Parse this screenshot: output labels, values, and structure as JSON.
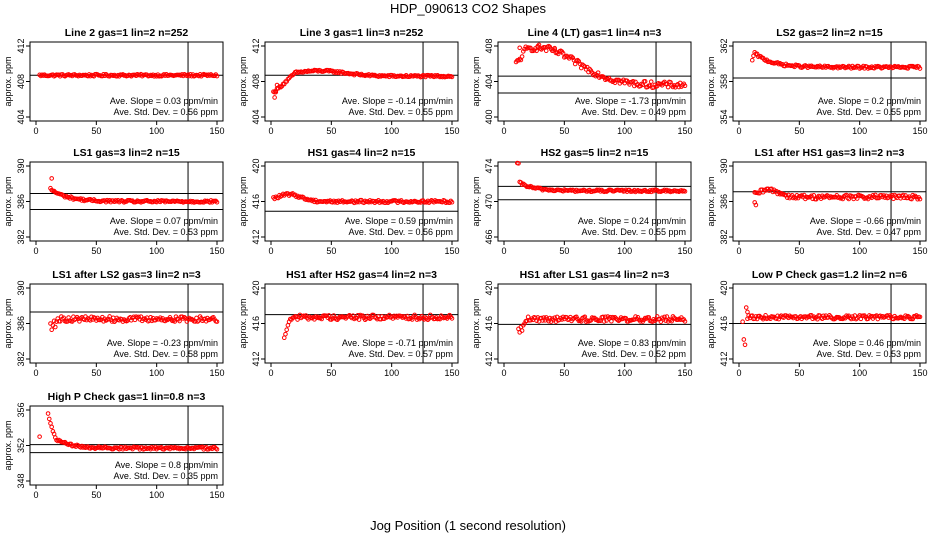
{
  "page": {
    "title": "HDP_090613  CO2 Shapes",
    "xlabel": "Jog Position (1 second resolution)"
  },
  "colors": {
    "points": "#ff0000",
    "axis": "#000000"
  },
  "annotation_labels": {
    "slope_prefix": "Ave. Slope =",
    "slope_unit": "ppm/min",
    "sd_prefix": "Ave. Std. Dev. =",
    "sd_unit": "ppm"
  },
  "chart_data": [
    {
      "type": "scatter",
      "title": "Line 2 gas=1 lin=2 n=252",
      "ylabel": "approx. ppm",
      "xlim": [
        0,
        150
      ],
      "xticks": [
        0,
        50,
        100,
        150
      ],
      "ylim": [
        404,
        412
      ],
      "yticks": [
        404,
        408,
        412
      ],
      "hlines": [
        408.7
      ],
      "vline": 126,
      "slope": "0.03",
      "sd": "0.56",
      "shape": {
        "start": 3,
        "end": 150,
        "base": 408.7,
        "noise": 0.12,
        "spikes": []
      }
    },
    {
      "type": "scatter",
      "title": "Line 3 gas=1 lin=3 n=252",
      "ylabel": "approx. ppm",
      "xlim": [
        0,
        150
      ],
      "xticks": [
        0,
        50,
        100,
        150
      ],
      "ylim": [
        404,
        412
      ],
      "yticks": [
        404,
        408,
        412
      ],
      "hlines": [
        408.7
      ],
      "vline": 126,
      "slope": "-0.14",
      "sd": "0.55",
      "shape": {
        "start": 2,
        "end": 150,
        "base": 408.6,
        "noise": 0.12,
        "bumpAmp": 0.6,
        "bumpCenter": 40,
        "bumpWidth": 30,
        "rampStart": 406.8,
        "rampLen": 18,
        "spikes": [
          [
            3,
            406.2
          ],
          [
            4,
            406.8
          ],
          [
            5,
            407.6
          ]
        ]
      }
    },
    {
      "type": "scatter",
      "title": "Line 4 (LT) gas=1 lin=4 n=3",
      "ylabel": "approx. ppm",
      "xlim": [
        0,
        150
      ],
      "xticks": [
        0,
        50,
        100,
        150
      ],
      "ylim": [
        400,
        408
      ],
      "yticks": [
        400,
        404,
        408
      ],
      "hlines": [
        404.6,
        402.7
      ],
      "vline": 126,
      "slope": "-1.73",
      "sd": "0.49",
      "shape": {
        "start": 10,
        "end": 150,
        "base": 403.6,
        "noise": 0.35,
        "bumpAmp": 4.2,
        "bumpCenter": 28,
        "bumpWidth": 45,
        "rampStart": 406.0,
        "rampLen": 8,
        "spikes": [
          [
            13,
            407.8
          ],
          [
            28,
            407.9
          ],
          [
            42,
            407.6
          ]
        ]
      }
    },
    {
      "type": "scatter",
      "title": "LS2 gas=2 lin=2 n=15",
      "ylabel": "approx. ppm",
      "xlim": [
        0,
        150
      ],
      "xticks": [
        0,
        50,
        100,
        150
      ],
      "ylim": [
        354,
        362
      ],
      "yticks": [
        354,
        358,
        362
      ],
      "hlines": [
        358.4
      ],
      "vline": 126,
      "slope": "0.2",
      "sd": "0.55",
      "shape": {
        "start": 13,
        "end": 150,
        "base": 359.6,
        "noise": 0.14,
        "decayAmp": 1.6,
        "decayTau": 14,
        "spikes": [
          [
            11,
            360.4
          ],
          [
            12,
            360.9
          ]
        ]
      }
    },
    {
      "type": "scatter",
      "title": "LS1 gas=3 lin=2 n=15",
      "ylabel": "approx. ppm",
      "xlim": [
        0,
        150
      ],
      "xticks": [
        0,
        50,
        100,
        150
      ],
      "ylim": [
        382,
        390
      ],
      "yticks": [
        382,
        386,
        390
      ],
      "hlines": [
        386.9,
        385.1
      ],
      "vline": 126,
      "slope": "0.07",
      "sd": "0.53",
      "shape": {
        "start": 12,
        "end": 150,
        "base": 386.0,
        "noise": 0.13,
        "decayAmp": 1.4,
        "decayTau": 14,
        "spikes": [
          [
            13,
            388.6
          ]
        ]
      }
    },
    {
      "type": "scatter",
      "title": "HS1 gas=4 lin=2 n=15",
      "ylabel": "approx. ppm",
      "xlim": [
        0,
        150
      ],
      "xticks": [
        0,
        50,
        100,
        150
      ],
      "ylim": [
        412,
        420
      ],
      "yticks": [
        412,
        416,
        420
      ],
      "hlines": [
        414.9
      ],
      "vline": 126,
      "slope": "0.59",
      "sd": "0.56",
      "shape": {
        "start": 2,
        "end": 150,
        "base": 416.0,
        "noise": 0.15,
        "bumpAmp": 0.8,
        "bumpCenter": 15,
        "bumpWidth": 14,
        "spikes": []
      }
    },
    {
      "type": "scatter",
      "title": "HS2 gas=5 lin=2 n=15",
      "ylabel": "approx. ppm",
      "xlim": [
        0,
        150
      ],
      "xticks": [
        0,
        50,
        100,
        150
      ],
      "ylim": [
        466,
        474
      ],
      "yticks": [
        466,
        470,
        474
      ],
      "hlines": [
        471.7,
        470.2
      ],
      "vline": 126,
      "slope": "0.24",
      "sd": "0.55",
      "shape": {
        "start": 13,
        "end": 150,
        "base": 471.2,
        "noise": 0.12,
        "decayAmp": 0.9,
        "decayTau": 12,
        "spikes": [
          [
            11,
            474.6
          ],
          [
            12,
            474.3
          ]
        ]
      }
    },
    {
      "type": "scatter",
      "title": "LS1 after HS1 gas=3 lin=2 n=3",
      "ylabel": "approx. ppm",
      "xlim": [
        0,
        150
      ],
      "xticks": [
        0,
        50,
        100,
        150
      ],
      "ylim": [
        382,
        390
      ],
      "yticks": [
        382,
        386,
        390
      ],
      "hlines": [
        387.1
      ],
      "vline": 126,
      "slope": "-0.66",
      "sd": "0.47",
      "shape": {
        "start": 13,
        "end": 150,
        "base": 386.5,
        "noise": 0.25,
        "bumpAmp": 0.8,
        "bumpCenter": 25,
        "bumpWidth": 12,
        "spikes": [
          [
            14,
            385.6
          ],
          [
            13,
            385.9
          ]
        ]
      }
    },
    {
      "type": "scatter",
      "title": "LS1 after LS2 gas=3 lin=2 n=3",
      "ylabel": "approx. ppm",
      "xlim": [
        0,
        150
      ],
      "xticks": [
        0,
        50,
        100,
        150
      ],
      "ylim": [
        382,
        390
      ],
      "yticks": [
        382,
        386,
        390
      ],
      "hlines": [
        387.3
      ],
      "vline": 126,
      "slope": "-0.23",
      "sd": "0.58",
      "shape": {
        "start": 17,
        "end": 150,
        "base": 386.5,
        "noise": 0.3,
        "spikes": [
          [
            12,
            386.0
          ],
          [
            13,
            385.3
          ],
          [
            14,
            385.8
          ],
          [
            15,
            386.3
          ],
          [
            16,
            385.6
          ]
        ]
      }
    },
    {
      "type": "scatter",
      "title": "HS1 after HS2 gas=4 lin=2 n=3",
      "ylabel": "approx. ppm",
      "xlim": [
        0,
        150
      ],
      "xticks": [
        0,
        50,
        100,
        150
      ],
      "ylim": [
        412,
        420
      ],
      "yticks": [
        412,
        416,
        420
      ],
      "hlines": [
        417.0
      ],
      "vline": 126,
      "slope": "-0.71",
      "sd": "0.57",
      "shape": {
        "start": 17,
        "end": 150,
        "base": 416.7,
        "noise": 0.28,
        "spikes": [
          [
            11,
            414.4
          ],
          [
            12,
            414.8
          ],
          [
            13,
            415.3
          ],
          [
            14,
            415.8
          ],
          [
            15,
            416.2
          ],
          [
            16,
            416.5
          ]
        ]
      }
    },
    {
      "type": "scatter",
      "title": "HS1 after LS1 gas=4 lin=2 n=3",
      "ylabel": "approx. ppm",
      "xlim": [
        0,
        150
      ],
      "xticks": [
        0,
        50,
        100,
        150
      ],
      "ylim": [
        412,
        420
      ],
      "yticks": [
        412,
        416,
        420
      ],
      "hlines": [
        415.9
      ],
      "vline": 126,
      "slope": "0.83",
      "sd": "0.52",
      "shape": {
        "start": 18,
        "end": 150,
        "base": 416.5,
        "noise": 0.3,
        "spikes": [
          [
            12,
            415.4
          ],
          [
            13,
            415.0
          ],
          [
            14,
            415.6
          ],
          [
            15,
            415.2
          ],
          [
            16,
            415.8
          ],
          [
            17,
            416.0
          ]
        ]
      }
    },
    {
      "type": "scatter",
      "title": "Low P Check gas=1.2 lin=2 n=6",
      "ylabel": "approx. ppm",
      "xlim": [
        0,
        150
      ],
      "xticks": [
        0,
        50,
        100,
        150
      ],
      "ylim": [
        412,
        420
      ],
      "yticks": [
        412,
        416,
        420
      ],
      "hlines": [
        416.0
      ],
      "vline": 126,
      "slope": "0.46",
      "sd": "0.53",
      "shape": {
        "start": 7,
        "end": 150,
        "base": 416.7,
        "noise": 0.22,
        "spikes": [
          [
            3,
            416.2
          ],
          [
            4,
            414.2
          ],
          [
            5,
            413.6
          ],
          [
            6,
            417.8
          ],
          [
            7,
            417.3
          ]
        ]
      }
    },
    {
      "type": "scatter",
      "title": "High P Check gas=1 lin=0.8 n=3",
      "ylabel": "approx. ppm",
      "xlim": [
        0,
        150
      ],
      "xticks": [
        0,
        50,
        100,
        150
      ],
      "ylim": [
        348,
        356
      ],
      "yticks": [
        348,
        352,
        356
      ],
      "hlines": [
        352.1,
        351.2
      ],
      "vline": 126,
      "slope": "0.8",
      "sd": "0.35",
      "shape": {
        "start": 18,
        "end": 150,
        "base": 351.7,
        "noise": 0.14,
        "decayAmp": 0.9,
        "decayTau": 12,
        "spikes": [
          [
            3,
            353.0
          ],
          [
            10,
            355.6
          ],
          [
            11,
            355.0
          ],
          [
            12,
            354.5
          ],
          [
            13,
            354.1
          ],
          [
            14,
            353.6
          ],
          [
            15,
            353.3
          ],
          [
            16,
            352.9
          ],
          [
            17,
            352.6
          ]
        ]
      }
    }
  ]
}
